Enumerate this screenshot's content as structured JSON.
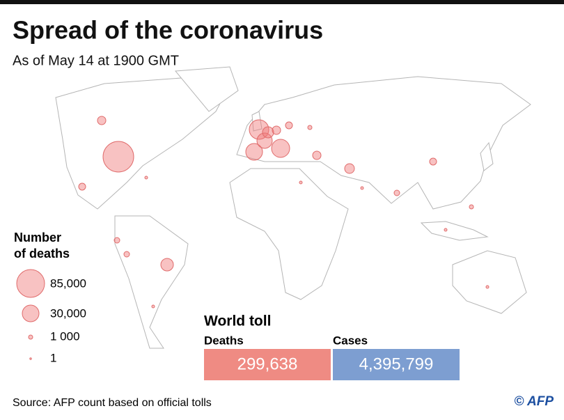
{
  "header": {
    "title": "Spread of the coronavirus",
    "subtitle": "As of May 14 at 1900 GMT"
  },
  "legend": {
    "title_lines": [
      "Number",
      "of deaths"
    ],
    "items": [
      {
        "label": "85,000"
      },
      {
        "label": "30,000"
      },
      {
        "label": "1 000"
      },
      {
        "label": "1"
      }
    ]
  },
  "world_toll": {
    "title": "World toll",
    "deaths": {
      "label": "Deaths",
      "value": "299,638"
    },
    "cases": {
      "label": "Cases",
      "value": "4,395,799"
    }
  },
  "footer": {
    "source": "Source: AFP count based on official tolls",
    "credit": "© AFP"
  }
}
